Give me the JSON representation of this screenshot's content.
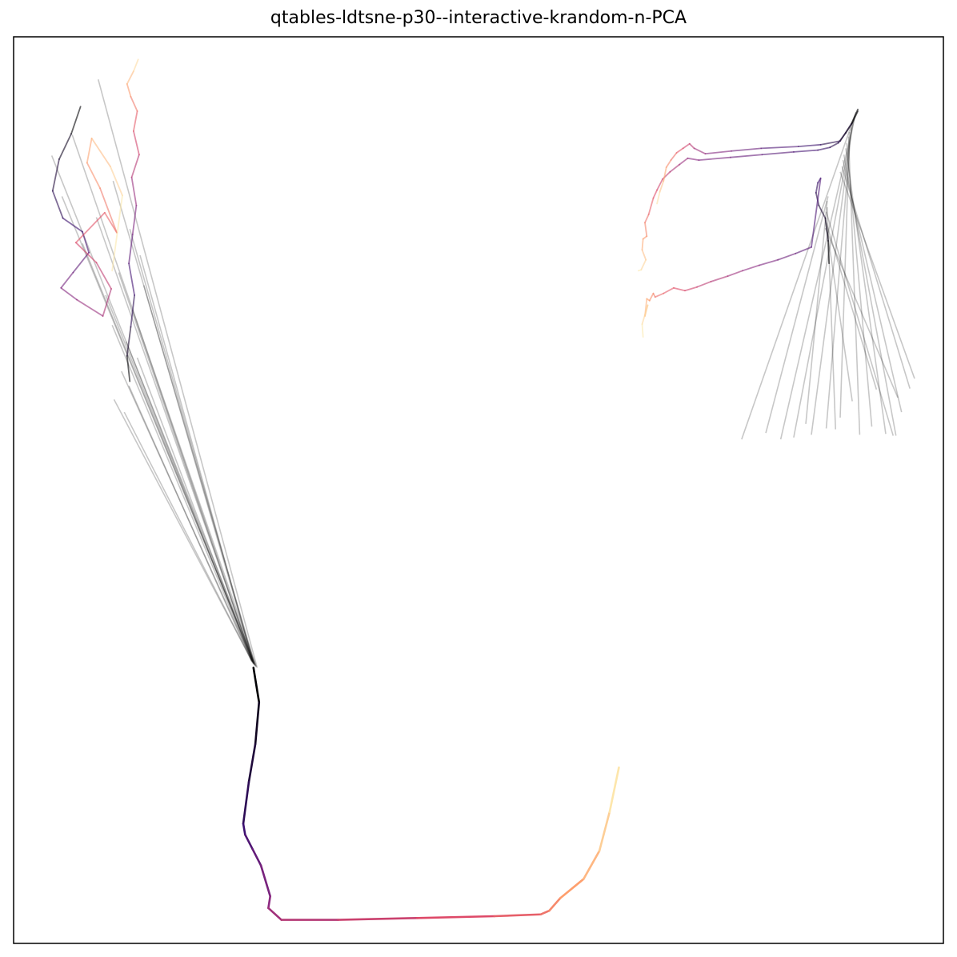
{
  "chart_data": {
    "type": "line",
    "title": "qtables-ldtsne-p30--interactive-krandom-n-PCA",
    "xlabel": "",
    "ylabel": "",
    "xticks": [],
    "yticks": [],
    "xlim": [
      0,
      100
    ],
    "ylim": [
      0,
      100
    ],
    "grid": false,
    "legend": "none",
    "colormap": [
      "#000004",
      "#3b0f70",
      "#8c2981",
      "#de4968",
      "#fe9f6d",
      "#fcfdbf"
    ],
    "fan_color": "#000000",
    "series": [
      {
        "x": [
          25.8,
          26.4,
          26.0,
          25.3,
          24.7,
          24.9,
          25.7,
          26.6,
          27.6,
          27.4,
          28.8,
          34.9,
          43.4,
          51.7,
          56.7,
          57.6,
          58.8,
          61.3,
          63.0,
          64.1,
          65.1
        ],
        "y": [
          30.4,
          26.6,
          22.0,
          17.8,
          13.2,
          12.0,
          10.4,
          8.6,
          5.2,
          3.9,
          2.6,
          2.6,
          2.8,
          3.0,
          3.2,
          3.6,
          5.0,
          7.1,
          10.2,
          14.5,
          19.4
        ]
      },
      {
        "x": [
          12.5,
          12.2,
          12.6,
          13.0,
          12.4,
          12.8,
          13.2,
          12.7,
          13.5,
          12.9,
          13.3,
          12.6,
          12.2,
          12.9,
          13.4
        ],
        "y": [
          62.0,
          64.8,
          68.0,
          71.5,
          75.0,
          78.2,
          81.4,
          84.5,
          87.0,
          89.6,
          91.8,
          93.4,
          94.8,
          96.2,
          97.5
        ]
      },
      {
        "x": [
          7.2,
          6.2,
          4.9,
          4.2,
          5.3,
          7.4,
          8.1,
          6.4,
          5.1,
          6.8,
          9.6,
          10.5,
          8.9,
          6.7,
          9.8,
          11.1,
          9.3,
          7.9,
          8.4,
          10.4,
          11.7,
          10.6
        ],
        "y": [
          92.3,
          89.3,
          86.5,
          83.0,
          80.0,
          78.5,
          76.2,
          74.0,
          72.3,
          71.0,
          69.2,
          72.2,
          75.1,
          77.3,
          80.6,
          78.4,
          83.3,
          86.1,
          88.8,
          85.7,
          82.5,
          74.2
        ]
      },
      {
        "x": [
          87.7,
          87.6,
          87.3,
          86.6,
          86.3,
          86.5,
          86.8,
          85.8,
          84.1,
          82.2,
          80.2,
          78.4,
          76.8,
          75.0,
          73.5,
          72.2,
          71.0,
          69.9,
          69.0,
          68.8,
          68.4,
          68.1,
          67.9,
          68.2,
          67.6,
          67.7
        ],
        "y": [
          75.0,
          77.5,
          80.0,
          81.4,
          82.8,
          83.9,
          84.4,
          76.8,
          76.1,
          75.4,
          74.8,
          74.2,
          73.6,
          73.0,
          72.4,
          72.0,
          72.3,
          71.7,
          71.3,
          71.7,
          70.9,
          71.1,
          69.2,
          70.4,
          68.3,
          66.9
        ]
      },
      {
        "x": [
          90.8,
          90.2,
          89.5,
          88.7,
          87.8,
          86.5,
          83.9,
          80.5,
          77.1,
          73.7,
          72.5,
          71.6,
          70.6,
          69.8,
          69.2,
          68.8,
          68.3,
          67.9,
          68.1,
          67.7,
          67.6,
          68.0,
          67.5,
          67.2
        ],
        "y": [
          91.8,
          90.5,
          89.4,
          88.3,
          87.8,
          87.5,
          87.3,
          87.0,
          86.7,
          86.4,
          86.6,
          85.9,
          85.1,
          84.3,
          83.1,
          82.2,
          80.4,
          79.5,
          78.0,
          77.7,
          76.5,
          75.4,
          74.3,
          74.2
        ]
      },
      {
        "x": [
          90.8,
          90.1,
          88.9,
          86.8,
          84.4,
          80.4,
          77.2,
          74.4,
          73.2,
          72.7,
          72.0,
          71.3,
          70.7,
          70.2,
          69.9,
          69.5,
          69.2
        ],
        "y": [
          92.0,
          90.4,
          88.5,
          88.1,
          87.9,
          87.7,
          87.4,
          87.1,
          87.7,
          88.2,
          87.7,
          87.2,
          86.4,
          85.6,
          84.1,
          82.9,
          81.6
        ]
      }
    ],
    "fan_lines_left": [
      {
        "from": [
          26.2,
          30.4
        ],
        "to": [
          9.1,
          95.3
        ]
      },
      {
        "from": [
          26.1,
          30.5
        ],
        "to": [
          6.3,
          89.2
        ]
      },
      {
        "from": [
          26.1,
          30.5
        ],
        "to": [
          4.1,
          86.9
        ]
      },
      {
        "from": [
          26.0,
          30.6
        ],
        "to": [
          10.7,
          84.1
        ]
      },
      {
        "from": [
          26.0,
          30.6
        ],
        "to": [
          5.2,
          82.4
        ]
      },
      {
        "from": [
          25.9,
          30.7
        ],
        "to": [
          8.9,
          80.1
        ]
      },
      {
        "from": [
          25.9,
          30.7
        ],
        "to": [
          12.5,
          78.8
        ]
      },
      {
        "from": [
          25.9,
          30.8
        ],
        "to": [
          7.4,
          77.2
        ]
      },
      {
        "from": [
          25.8,
          30.8
        ],
        "to": [
          13.6,
          75.9
        ]
      },
      {
        "from": [
          25.8,
          30.8
        ],
        "to": [
          11.3,
          74.0
        ]
      },
      {
        "from": [
          25.8,
          30.9
        ],
        "to": [
          14.0,
          72.6
        ]
      },
      {
        "from": [
          25.8,
          30.9
        ],
        "to": [
          9.9,
          71.5
        ]
      },
      {
        "from": [
          25.8,
          30.9
        ],
        "to": [
          12.8,
          69.9
        ]
      },
      {
        "from": [
          25.7,
          31.0
        ],
        "to": [
          10.6,
          68.2
        ]
      },
      {
        "from": [
          25.7,
          31.0
        ],
        "to": [
          12.1,
          66.4
        ]
      },
      {
        "from": [
          25.7,
          31.0
        ],
        "to": [
          13.3,
          64.6
        ]
      },
      {
        "from": [
          25.7,
          31.1
        ],
        "to": [
          11.6,
          63.1
        ]
      },
      {
        "from": [
          25.6,
          31.1
        ],
        "to": [
          12.4,
          61.5
        ]
      },
      {
        "from": [
          25.6,
          31.2
        ],
        "to": [
          10.8,
          60.0
        ]
      },
      {
        "from": [
          25.6,
          31.2
        ],
        "to": [
          11.9,
          58.6
        ]
      }
    ],
    "fan_lines_right": [
      {
        "from": [
          90.6,
          91.7
        ],
        "to": [
          78.3,
          55.6
        ]
      },
      {
        "from": [
          90.5,
          91.3
        ],
        "to": [
          82.5,
          55.6
        ]
      },
      {
        "from": [
          90.4,
          90.9
        ],
        "to": [
          83.9,
          55.8
        ]
      },
      {
        "from": [
          90.2,
          90.4
        ],
        "to": [
          85.8,
          56.1
        ]
      },
      {
        "from": [
          90.1,
          90.0
        ],
        "to": [
          87.4,
          56.8
        ]
      },
      {
        "from": [
          89.9,
          89.5
        ],
        "to": [
          88.9,
          58.0
        ]
      },
      {
        "from": [
          89.8,
          89.0
        ],
        "to": [
          91.0,
          56.1
        ]
      },
      {
        "from": [
          89.6,
          88.3
        ],
        "to": [
          92.3,
          57.0
        ]
      },
      {
        "from": [
          89.5,
          87.7
        ],
        "to": [
          93.8,
          56.2
        ]
      },
      {
        "from": [
          89.3,
          87.0
        ],
        "to": [
          94.9,
          56.0
        ]
      },
      {
        "from": [
          89.2,
          86.4
        ],
        "to": [
          95.5,
          58.6
        ]
      },
      {
        "from": [
          89.1,
          85.7
        ],
        "to": [
          96.4,
          61.2
        ]
      },
      {
        "from": [
          88.9,
          85.1
        ],
        "to": [
          96.9,
          62.3
        ]
      },
      {
        "from": [
          87.6,
          82.4
        ],
        "to": [
          80.9,
          56.3
        ]
      },
      {
        "from": [
          87.5,
          81.9
        ],
        "to": [
          85.2,
          57.3
        ]
      },
      {
        "from": [
          87.5,
          81.2
        ],
        "to": [
          88.4,
          56.7
        ]
      },
      {
        "from": [
          87.4,
          80.7
        ],
        "to": [
          94.6,
          56.0
        ]
      },
      {
        "from": [
          87.3,
          80.0
        ],
        "to": [
          90.2,
          59.8
        ]
      },
      {
        "from": [
          87.4,
          79.5
        ],
        "to": [
          92.8,
          61.1
        ]
      },
      {
        "from": [
          87.3,
          78.9
        ],
        "to": [
          95.1,
          60.2
        ]
      }
    ]
  }
}
